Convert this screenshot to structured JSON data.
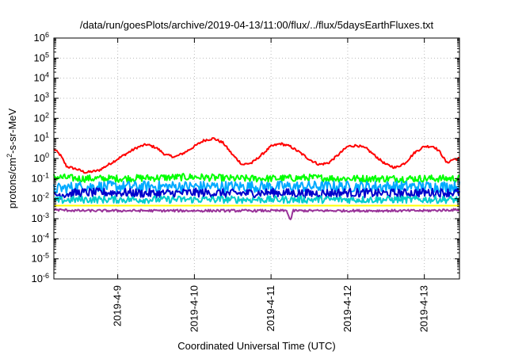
{
  "chart_data": {
    "type": "line",
    "title": "/data/run/goesPlots/archive/2019-04-13/11:00/flux/../flux/5daysEarthFluxes.txt",
    "xlabel": "Coordinated Universal Time (UTC)",
    "ylabel": {
      "prefix": "protons/cm",
      "sup": "2",
      "suffix": "-s-sr-MeV"
    },
    "yscale": "log",
    "ylim": [
      1e-06,
      1000000.0
    ],
    "y_ticks": [
      {
        "exp": "-6",
        "value": 1e-06
      },
      {
        "exp": "-5",
        "value": 1e-05
      },
      {
        "exp": "-4",
        "value": 0.0001
      },
      {
        "exp": "-3",
        "value": 0.001
      },
      {
        "exp": "-2",
        "value": 0.01
      },
      {
        "exp": "-1",
        "value": 0.1
      },
      {
        "exp": "0",
        "value": 1
      },
      {
        "exp": "1",
        "value": 10
      },
      {
        "exp": "2",
        "value": 100
      },
      {
        "exp": "3",
        "value": 1000
      },
      {
        "exp": "4",
        "value": 10000
      },
      {
        "exp": "5",
        "value": 100000
      },
      {
        "exp": "6",
        "value": 1000000
      }
    ],
    "y_tick_base": "10",
    "xlim": [
      "2019-04-08 04:00",
      "2019-04-13 11:00"
    ],
    "x_ticks": [
      {
        "label": "2019-4-9",
        "date": "2019-04-09 00:00"
      },
      {
        "label": "2019-4-10",
        "date": "2019-04-10 00:00"
      },
      {
        "label": "2019-4-11",
        "date": "2019-04-11 00:00"
      },
      {
        "label": "2019-4-12",
        "date": "2019-04-12 00:00"
      },
      {
        "label": "2019-4-13",
        "date": "2019-04-13 00:00"
      }
    ],
    "grid": true,
    "legend": "none",
    "series": [
      {
        "color": "#ff0000",
        "noise": 0.06,
        "values": [
          [
            "2019-04-08 04:00",
            3.0
          ],
          [
            "2019-04-08 06:00",
            1.5
          ],
          [
            "2019-04-08 08:00",
            0.4
          ],
          [
            "2019-04-08 11:00",
            0.3
          ],
          [
            "2019-04-08 14:00",
            0.2
          ],
          [
            "2019-04-08 18:00",
            0.25
          ],
          [
            "2019-04-08 22:00",
            0.6
          ],
          [
            "2019-04-09 02:00",
            1.5
          ],
          [
            "2019-04-09 06:00",
            3.5
          ],
          [
            "2019-04-09 09:00",
            5.0
          ],
          [
            "2019-04-09 12:00",
            3.5
          ],
          [
            "2019-04-09 15:00",
            1.5
          ],
          [
            "2019-04-09 18:00",
            1.2
          ],
          [
            "2019-04-09 21:00",
            2.0
          ],
          [
            "2019-04-10 00:00",
            4.0
          ],
          [
            "2019-04-10 03:00",
            8.0
          ],
          [
            "2019-04-10 06:00",
            10.0
          ],
          [
            "2019-04-10 09:00",
            6.0
          ],
          [
            "2019-04-10 12:00",
            1.5
          ],
          [
            "2019-04-10 15:00",
            0.5
          ],
          [
            "2019-04-10 18:00",
            0.6
          ],
          [
            "2019-04-10 21:00",
            1.5
          ],
          [
            "2019-04-11 00:00",
            4.0
          ],
          [
            "2019-04-11 03:00",
            5.5
          ],
          [
            "2019-04-11 06:00",
            4.0
          ],
          [
            "2019-04-11 09:00",
            2.0
          ],
          [
            "2019-04-11 12:00",
            0.9
          ],
          [
            "2019-04-11 15:00",
            0.5
          ],
          [
            "2019-04-11 18:00",
            0.6
          ],
          [
            "2019-04-11 21:00",
            1.5
          ],
          [
            "2019-04-12 00:00",
            4.0
          ],
          [
            "2019-04-12 03:00",
            4.5
          ],
          [
            "2019-04-12 06:00",
            3.0
          ],
          [
            "2019-04-12 09:00",
            1.2
          ],
          [
            "2019-04-12 12:00",
            0.5
          ],
          [
            "2019-04-12 15:00",
            0.35
          ],
          [
            "2019-04-12 18:00",
            0.6
          ],
          [
            "2019-04-12 21:00",
            2.0
          ],
          [
            "2019-04-13 00:00",
            4.0
          ],
          [
            "2019-04-13 03:00",
            4.0
          ],
          [
            "2019-04-13 05:00",
            2.0
          ],
          [
            "2019-04-13 07:00",
            0.6
          ],
          [
            "2019-04-13 09:00",
            0.9
          ],
          [
            "2019-04-13 11:00",
            1.0
          ]
        ]
      },
      {
        "color": "#00ff00",
        "noise": 0.18,
        "values": [
          [
            "2019-04-08 04:00",
            0.12
          ],
          [
            "2019-04-08 12:00",
            0.1
          ],
          [
            "2019-04-09 00:00",
            0.1
          ],
          [
            "2019-04-09 12:00",
            0.11
          ],
          [
            "2019-04-10 00:00",
            0.12
          ],
          [
            "2019-04-10 12:00",
            0.1
          ],
          [
            "2019-04-11 00:00",
            0.1
          ],
          [
            "2019-04-11 12:00",
            0.11
          ],
          [
            "2019-04-12 00:00",
            0.1
          ],
          [
            "2019-04-12 12:00",
            0.1
          ],
          [
            "2019-04-13 00:00",
            0.1
          ],
          [
            "2019-04-13 11:00",
            0.1
          ]
        ]
      },
      {
        "color": "#00aaff",
        "noise": 0.28,
        "values": [
          [
            "2019-04-08 04:00",
            0.03
          ],
          [
            "2019-04-08 12:00",
            0.04
          ],
          [
            "2019-04-09 00:00",
            0.04
          ],
          [
            "2019-04-09 12:00",
            0.04
          ],
          [
            "2019-04-10 00:00",
            0.04
          ],
          [
            "2019-04-10 12:00",
            0.04
          ],
          [
            "2019-04-11 00:00",
            0.04
          ],
          [
            "2019-04-11 12:00",
            0.04
          ],
          [
            "2019-04-12 00:00",
            0.04
          ],
          [
            "2019-04-12 12:00",
            0.04
          ],
          [
            "2019-04-13 00:00",
            0.04
          ],
          [
            "2019-04-13 11:00",
            0.04
          ]
        ]
      },
      {
        "color": "#0000cc",
        "noise": 0.22,
        "values": [
          [
            "2019-04-08 04:00",
            0.015
          ],
          [
            "2019-04-08 12:00",
            0.02
          ],
          [
            "2019-04-09 00:00",
            0.02
          ],
          [
            "2019-04-09 12:00",
            0.018
          ],
          [
            "2019-04-10 00:00",
            0.02
          ],
          [
            "2019-04-10 12:00",
            0.018
          ],
          [
            "2019-04-11 00:00",
            0.02
          ],
          [
            "2019-04-11 12:00",
            0.018
          ],
          [
            "2019-04-12 00:00",
            0.02
          ],
          [
            "2019-04-12 12:00",
            0.018
          ],
          [
            "2019-04-13 00:00",
            0.02
          ],
          [
            "2019-04-13 11:00",
            0.02
          ]
        ]
      },
      {
        "color": "#00cccc",
        "noise": 0.18,
        "values": [
          [
            "2019-04-08 04:00",
            0.008
          ],
          [
            "2019-04-08 12:00",
            0.009
          ],
          [
            "2019-04-09 00:00",
            0.009
          ],
          [
            "2019-04-09 12:00",
            0.009
          ],
          [
            "2019-04-10 00:00",
            0.009
          ],
          [
            "2019-04-10 12:00",
            0.009
          ],
          [
            "2019-04-11 00:00",
            0.009
          ],
          [
            "2019-04-11 12:00",
            0.009
          ],
          [
            "2019-04-12 00:00",
            0.009
          ],
          [
            "2019-04-12 12:00",
            0.009
          ],
          [
            "2019-04-13 00:00",
            0.009
          ],
          [
            "2019-04-13 11:00",
            0.009
          ]
        ]
      },
      {
        "color": "#ffff00",
        "noise": 0.0,
        "values": [
          [
            "2019-04-08 04:00",
            0.0045
          ],
          [
            "2019-04-13 11:00",
            0.0045
          ]
        ]
      },
      {
        "color": "#993399",
        "noise": 0.06,
        "values": [
          [
            "2019-04-08 04:00",
            0.0028
          ],
          [
            "2019-04-08 12:00",
            0.0025
          ],
          [
            "2019-04-09 00:00",
            0.0025
          ],
          [
            "2019-04-09 12:00",
            0.0025
          ],
          [
            "2019-04-10 00:00",
            0.0025
          ],
          [
            "2019-04-10 12:00",
            0.0025
          ],
          [
            "2019-04-11 00:00",
            0.0025
          ],
          [
            "2019-04-11 05:00",
            0.0025
          ],
          [
            "2019-04-11 06:00",
            0.0008
          ],
          [
            "2019-04-11 07:00",
            0.0025
          ],
          [
            "2019-04-11 12:00",
            0.0025
          ],
          [
            "2019-04-12 00:00",
            0.0025
          ],
          [
            "2019-04-12 12:00",
            0.0025
          ],
          [
            "2019-04-13 00:00",
            0.0025
          ],
          [
            "2019-04-13 11:00",
            0.0028
          ]
        ]
      }
    ]
  }
}
